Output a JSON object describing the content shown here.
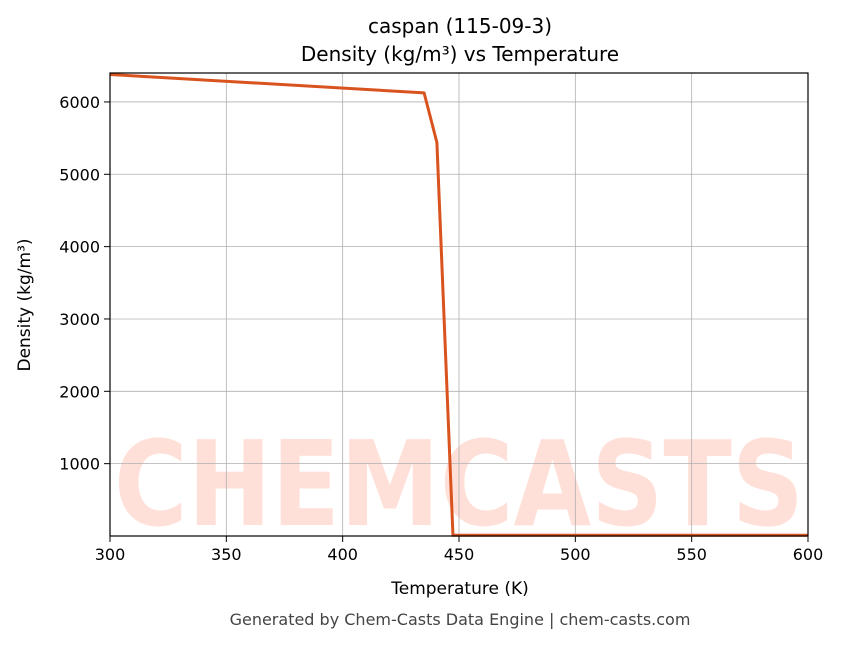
{
  "chart_data": {
    "type": "line",
    "title": "caspan (115-09-3)",
    "subtitle": "Density (kg/m³) vs Temperature",
    "x_label": "Temperature (K)",
    "y_label": "Density (kg/m³)",
    "watermark": "CHEMCASTS",
    "footer": "Generated by Chem-Casts Data Engine | chem-casts.com",
    "x": [
      300,
      435,
      440.5,
      447.4,
      600
    ],
    "series": [
      {
        "name": "Density",
        "color": "#d9531e",
        "values": [
          6380,
          6125,
          5440,
          10,
          10
        ]
      }
    ],
    "xlim": [
      300,
      600
    ],
    "xticks": [
      300,
      350,
      400,
      450,
      500,
      550,
      600
    ],
    "ylim": [
      0,
      6400
    ],
    "yticks": [
      1000,
      2000,
      3000,
      4000,
      5000,
      6000
    ],
    "grid": true
  }
}
